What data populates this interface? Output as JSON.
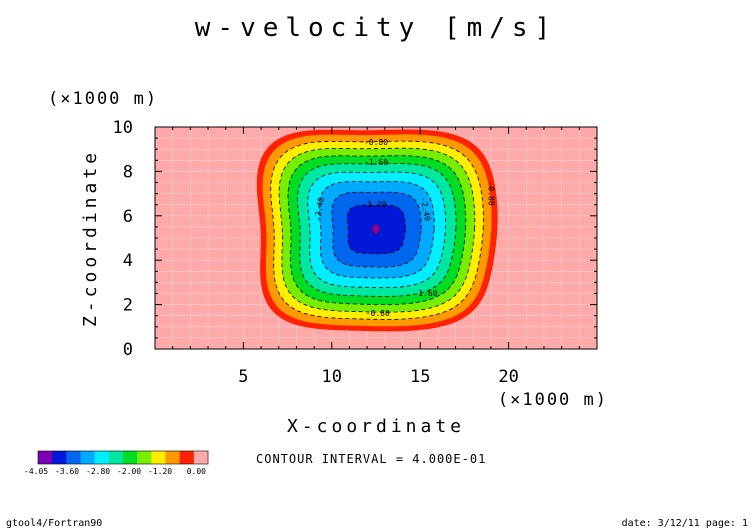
{
  "chart_data": {
    "type": "heatmap",
    "title": "w-velocity [m/s]",
    "xlabel": "X-coordinate",
    "ylabel": "Z-coordinate",
    "x_unit": "(×1000 m)",
    "y_unit": "(×1000 m)",
    "xlim": [
      0,
      25
    ],
    "ylim": [
      0,
      10
    ],
    "x_ticks": [
      "5",
      "10",
      "15",
      "20"
    ],
    "y_ticks": [
      "0",
      "2",
      "4",
      "6",
      "8",
      "10"
    ],
    "contour_interval_text": "CONTOUR INTERVAL = 4.000E-01",
    "contour_labels": [
      "-0.80",
      "-1.60",
      "-2.40",
      "-3.20",
      "-1.60",
      "-0.80",
      "-2.40",
      "-0.80"
    ],
    "levels": [
      -4.4,
      -4.0,
      -3.6,
      -3.2,
      -2.8,
      -2.4,
      -2.0,
      -1.6,
      -1.2,
      -0.8,
      -0.4,
      0.0
    ],
    "min_location": [
      12.5,
      5.4
    ],
    "colors": [
      "#7b00b5",
      "#0018d8",
      "#0066ee",
      "#00aaff",
      "#00eeff",
      "#00e8a0",
      "#00dd22",
      "#77ee00",
      "#ffee00",
      "#ff9900",
      "#ff2200",
      "#ffaaaa"
    ],
    "colorbar_labels": [
      "-4.05",
      "-3.60",
      "-2.80",
      "-2.00",
      "-1.20",
      "0.00"
    ]
  },
  "footer": {
    "left": "gtool4/Fortran90",
    "right": "date: 3/12/11 page: 1"
  }
}
